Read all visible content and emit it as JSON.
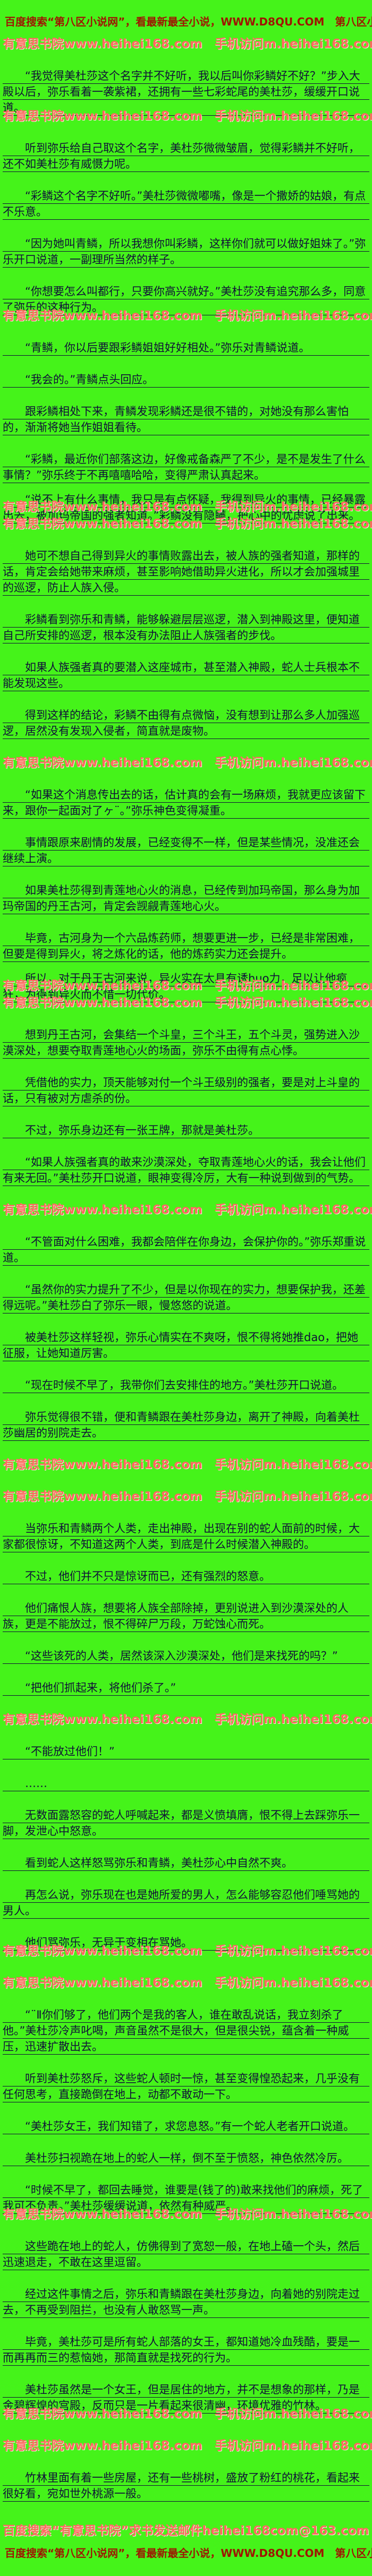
{
  "page": {
    "bg_color": "#45f31a",
    "body_text_color": "#101038",
    "promo_red_color": "#9e1602",
    "watermark_pink_color": "#ff6a60"
  },
  "header": {
    "text": "百度搜索“第八区小说网”，看最新最全小说，WWW.D8QU.COM　第八区小说网更新最快！"
  },
  "watermark": {
    "text": "有意思书院www.heihei168.com　手机访问m.heihei168.com"
  },
  "footer": {
    "line1": "百度搜索“有意思书院”求书发送邮件heihei168com@163.com",
    "line2": "百度搜索“第八区小说网”，看最新最全小说，WWW.D8QU.COM　第八区小说网更新最快！"
  },
  "content": {
    "blocks": [
      {
        "type": "header"
      },
      {
        "type": "wm"
      },
      {
        "type": "para",
        "text": "“我觉得美杜莎这个名字并不好听，我以后叫你彩鳞好不好？”步入大殿以后，弥乐看着一袭紫裙，还拥有一些七彩蛇尾的美杜莎，缓缓开口说道。"
      },
      {
        "type": "wm",
        "pos": "prev"
      },
      {
        "type": "para",
        "text": "听到弥乐给自己取这个名字，美杜莎微微皱眉，觉得彩鳞并不好听，还不如美杜莎有威慑力呢。"
      },
      {
        "type": "para",
        "text": "“彩鳞这个名字不好听。”美杜莎微微嘟嘴，像是一个撒娇的姑娘，有点不乐意。"
      },
      {
        "type": "para",
        "text": "“因为她叫青鳞，所以我想你叫彩鳞，这样你们就可以做好姐妹了。”弥乐开口说道，一副理所当然的样子。"
      },
      {
        "type": "para",
        "text": "“你想要怎么叫都行，只要你高兴就好。”美杜莎没有追究那么多，同意了弥乐的这种行为。"
      },
      {
        "type": "wm",
        "pos": "prev"
      },
      {
        "type": "para",
        "text": "“青鳞，你以后要跟彩鳞姐姐好好相处。”弥乐对青鳞说道。"
      },
      {
        "type": "para",
        "text": "“我会的。”青鳞点头回应。"
      },
      {
        "type": "para",
        "text": "跟彩鳞相处下来，青鳞发现彩鳞还是很不错的，对她没有那么害怕的，渐渐将她当作姐姐看待。"
      },
      {
        "type": "para",
        "text": "“彩鳞，最近你们部落这边，好像戒备森严了不少，是不是发生了什么事情？”弥乐终于不再嘻嘻哈哈，变得严肃认真起来。"
      },
      {
        "type": "wm",
        "pos": "next"
      },
      {
        "type": "para",
        "text": "“说不上有什么事情，我只是有点怀疑，我得到异火的事情，已经暴露出去，被加玛帝国的强者知道。”彩鳞没有隐瞒，把心中的忧虑说了出来。"
      },
      {
        "type": "wm",
        "pos": "prev"
      },
      {
        "type": "para",
        "text": "她可不想自己得到异火的事情败露出去，被人族的强者知道，那样的话，肯定会给她带来麻烦，甚至影响她借助异火进化，所以才会加强城里的巡逻，防止人族入侵。"
      },
      {
        "type": "para",
        "text": "彩鳞看到弥乐和青鳞，能够躲避层层巡逻，潜入到神殿这里，便知道自己所安排的巡逻，根本没有办法阻止人族强者的步伐。"
      },
      {
        "type": "para",
        "text": "如果人族强者真的要潜入这座城市，甚至潜入神殿，蛇人士兵根本不能发现这些。"
      },
      {
        "type": "para",
        "text": "得到这样的结论，彩鳞不由得有点微恼，没有想到让那么多人加强巡逻，居然没有发现入侵者，简直就是废物。"
      },
      {
        "type": "wm"
      },
      {
        "type": "para",
        "text": "“如果这个消息传出去的话，估计真的会有一场麻烦，我就更应该留下来，跟你一起面对了ヶ¨。”弥乐神色变得凝重。"
      },
      {
        "type": "para",
        "text": "事情跟原来剧情的发展，已经变得不一样，但是某些情况，没准还会继续上演。"
      },
      {
        "type": "para",
        "text": "如果美杜莎得到青莲地心火的消息，已经传到加玛帝国，那么身为加玛帝国的丹王古河，肯定会觊觎青莲地心火。"
      },
      {
        "type": "para",
        "text": "毕竟，古河身为一个六品炼药师，想要更进一步，已经是非常困难，但要是得到异火，将之炼化的话，他的炼药实力还会提升。"
      },
      {
        "type": "wm",
        "pos": "next"
      },
      {
        "type": "para",
        "text": "所以，对于丹王古河来说，异火实在太具有诱huo力，足以让他疯狂，为得到异火而不惜一切代价。"
      },
      {
        "type": "wm",
        "pos": "prev"
      },
      {
        "type": "para",
        "text": "想到丹王古河，会集结一个斗皇，三个斗王，五个斗灵，强势进入沙漠深处，想要夺取青莲地心火的场面，弥乐不由得有点心悸。"
      },
      {
        "type": "para",
        "text": "凭借他的实力，顶天能够对付一个斗王级别的强者，要是对上斗皇的话，只有被对方虐杀的份。"
      },
      {
        "type": "para",
        "text": "不过，弥乐身边还有一张王牌，那就是美杜莎。"
      },
      {
        "type": "para",
        "text": "“如果人族强者真的敢来沙漠深处，夺取青莲地心火的话，我会让他们有来无回。”美杜莎开口说道，眼神变得冷厉，大有一种说到做到的气势。"
      },
      {
        "type": "wm"
      },
      {
        "type": "para",
        "text": "“不管面对什么困难，我都会陪伴在你身边，会保护你的。”弥乐郑重说道。"
      },
      {
        "type": "para",
        "text": "“虽然你的实力提升了不少，但是以你现在的实力，想要保护我，还差得远呢。”美杜莎白了弥乐一眼，慢悠悠的说道。"
      },
      {
        "type": "para",
        "text": "被美杜莎这样轻视，弥乐心情实在不爽呀，恨不得将她推dao，把她征服，让她知道厉害。"
      },
      {
        "type": "para",
        "text": "“现在时候不早了，我带你们去安排住的地方。”美杜莎开口说道。"
      },
      {
        "type": "para",
        "text": "弥乐觉得很不错，便和青鳞跟在美杜莎身边，离开了神殿，向着美杜莎幽居的别院走去。"
      },
      {
        "type": "wm"
      },
      {
        "type": "wm"
      },
      {
        "type": "para",
        "text": "当弥乐和青鳞两个人类，走出神殿，出现在别的蛇人面前的时候，大家都很惊讶，不知道这两个人类，到底是什么时候潜入神殿的。"
      },
      {
        "type": "para",
        "text": "不过，他们并不只是惊讶而已，还有强烈的怒意。"
      },
      {
        "type": "para",
        "text": "他们痛恨人族，想要将人族全部除掉，更别说进入到沙漠深处的人族，更是不能放过，恨不得碎尸万段，万蛇蚀心而死。"
      },
      {
        "type": "para",
        "text": "“这些该死的人类，居然该深入沙漠深处，他们是来找死的吗？”"
      },
      {
        "type": "para",
        "text": "“把他们抓起来，将他们杀了。”"
      },
      {
        "type": "wm"
      },
      {
        "type": "para",
        "text": "“不能放过他们！”"
      },
      {
        "type": "para",
        "text": "……"
      },
      {
        "type": "para",
        "text": "无数面露怒容的蛇人呼喊起来，都是义愤填膺，恨不得上去踩弥乐一脚，发泄心中怒意。"
      },
      {
        "type": "para",
        "text": "看到蛇人这样怒骂弥乐和青鳞，美杜莎心中自然不爽。"
      },
      {
        "type": "para",
        "text": "再怎么说，弥乐现在也是她所爱的男人，怎么能够容忍他们唾骂她的男人。"
      },
      {
        "type": "para",
        "text": "他们骂弥乐，无异于变相在骂她。"
      },
      {
        "type": "wm",
        "pos": "prev"
      },
      {
        "type": "wm"
      },
      {
        "type": "para",
        "text": "“¨Ⅱ你们够了，他们两个是我的客人，谁在敢乱说话，我立刻杀了他。”美杜莎冷声叱喝，声音虽然不是很大，但是很尖锐，蕴含着一种威压，迅速扩散出去。"
      },
      {
        "type": "para",
        "text": "听到美杜莎怒斥，这些蛇人顿时一惊，甚至变得惶恐起来，几乎没有任何思考，直接跪倒在地上，动都不敢动一下。"
      },
      {
        "type": "para",
        "text": "“美杜莎女王，我们知错了，求您息怒。”有一个蛇人老者开口说道。"
      },
      {
        "type": "para",
        "text": "美杜莎扫视跪在地上的蛇人一样，倒不至于愤怒，神色依然冷厉。"
      },
      {
        "type": "para",
        "text": "“时候不早了，都回去睡觉，谁要是(钱了的)敢来找他们的麻烦，死了我可不负责。”美杜莎缓缓说道，依然有种威严。"
      },
      {
        "type": "wm",
        "pos": "prev"
      },
      {
        "type": "para",
        "text": "这些跪在地上的蛇人，仿佛得到了宽恕一般，在地上磕一个头，然后迅速退走，不敢在这里逗留。"
      },
      {
        "type": "para",
        "text": "经过这件事情之后，弥乐和青鳞跟在美杜莎身边，向着她的别院走过去，不再受到阻拦，也没有人敢怒骂一声。"
      },
      {
        "type": "para",
        "text": "毕竟，美杜莎可是所有蛇人部落的女王，都知道她冷血残酷，要是一而再再而三的惹恼她，那简直就是找死的行为。"
      },
      {
        "type": "para",
        "text": "美杜莎虽然是一个女王，但是居住的地方，并不是想象的那样，乃是金碧辉煌的宫殿，反而只是一片看起来很清幽，环境优雅的竹林。"
      },
      {
        "type": "wm",
        "pos": "prev"
      },
      {
        "type": "wm"
      },
      {
        "type": "para",
        "text": "竹林里面有着一些房屋，还有一些桃树，盛放了粉红的桃花，看起来很好看，宛如世外桃源一般。"
      },
      {
        "type": "footer1"
      },
      {
        "type": "footer2"
      }
    ]
  }
}
